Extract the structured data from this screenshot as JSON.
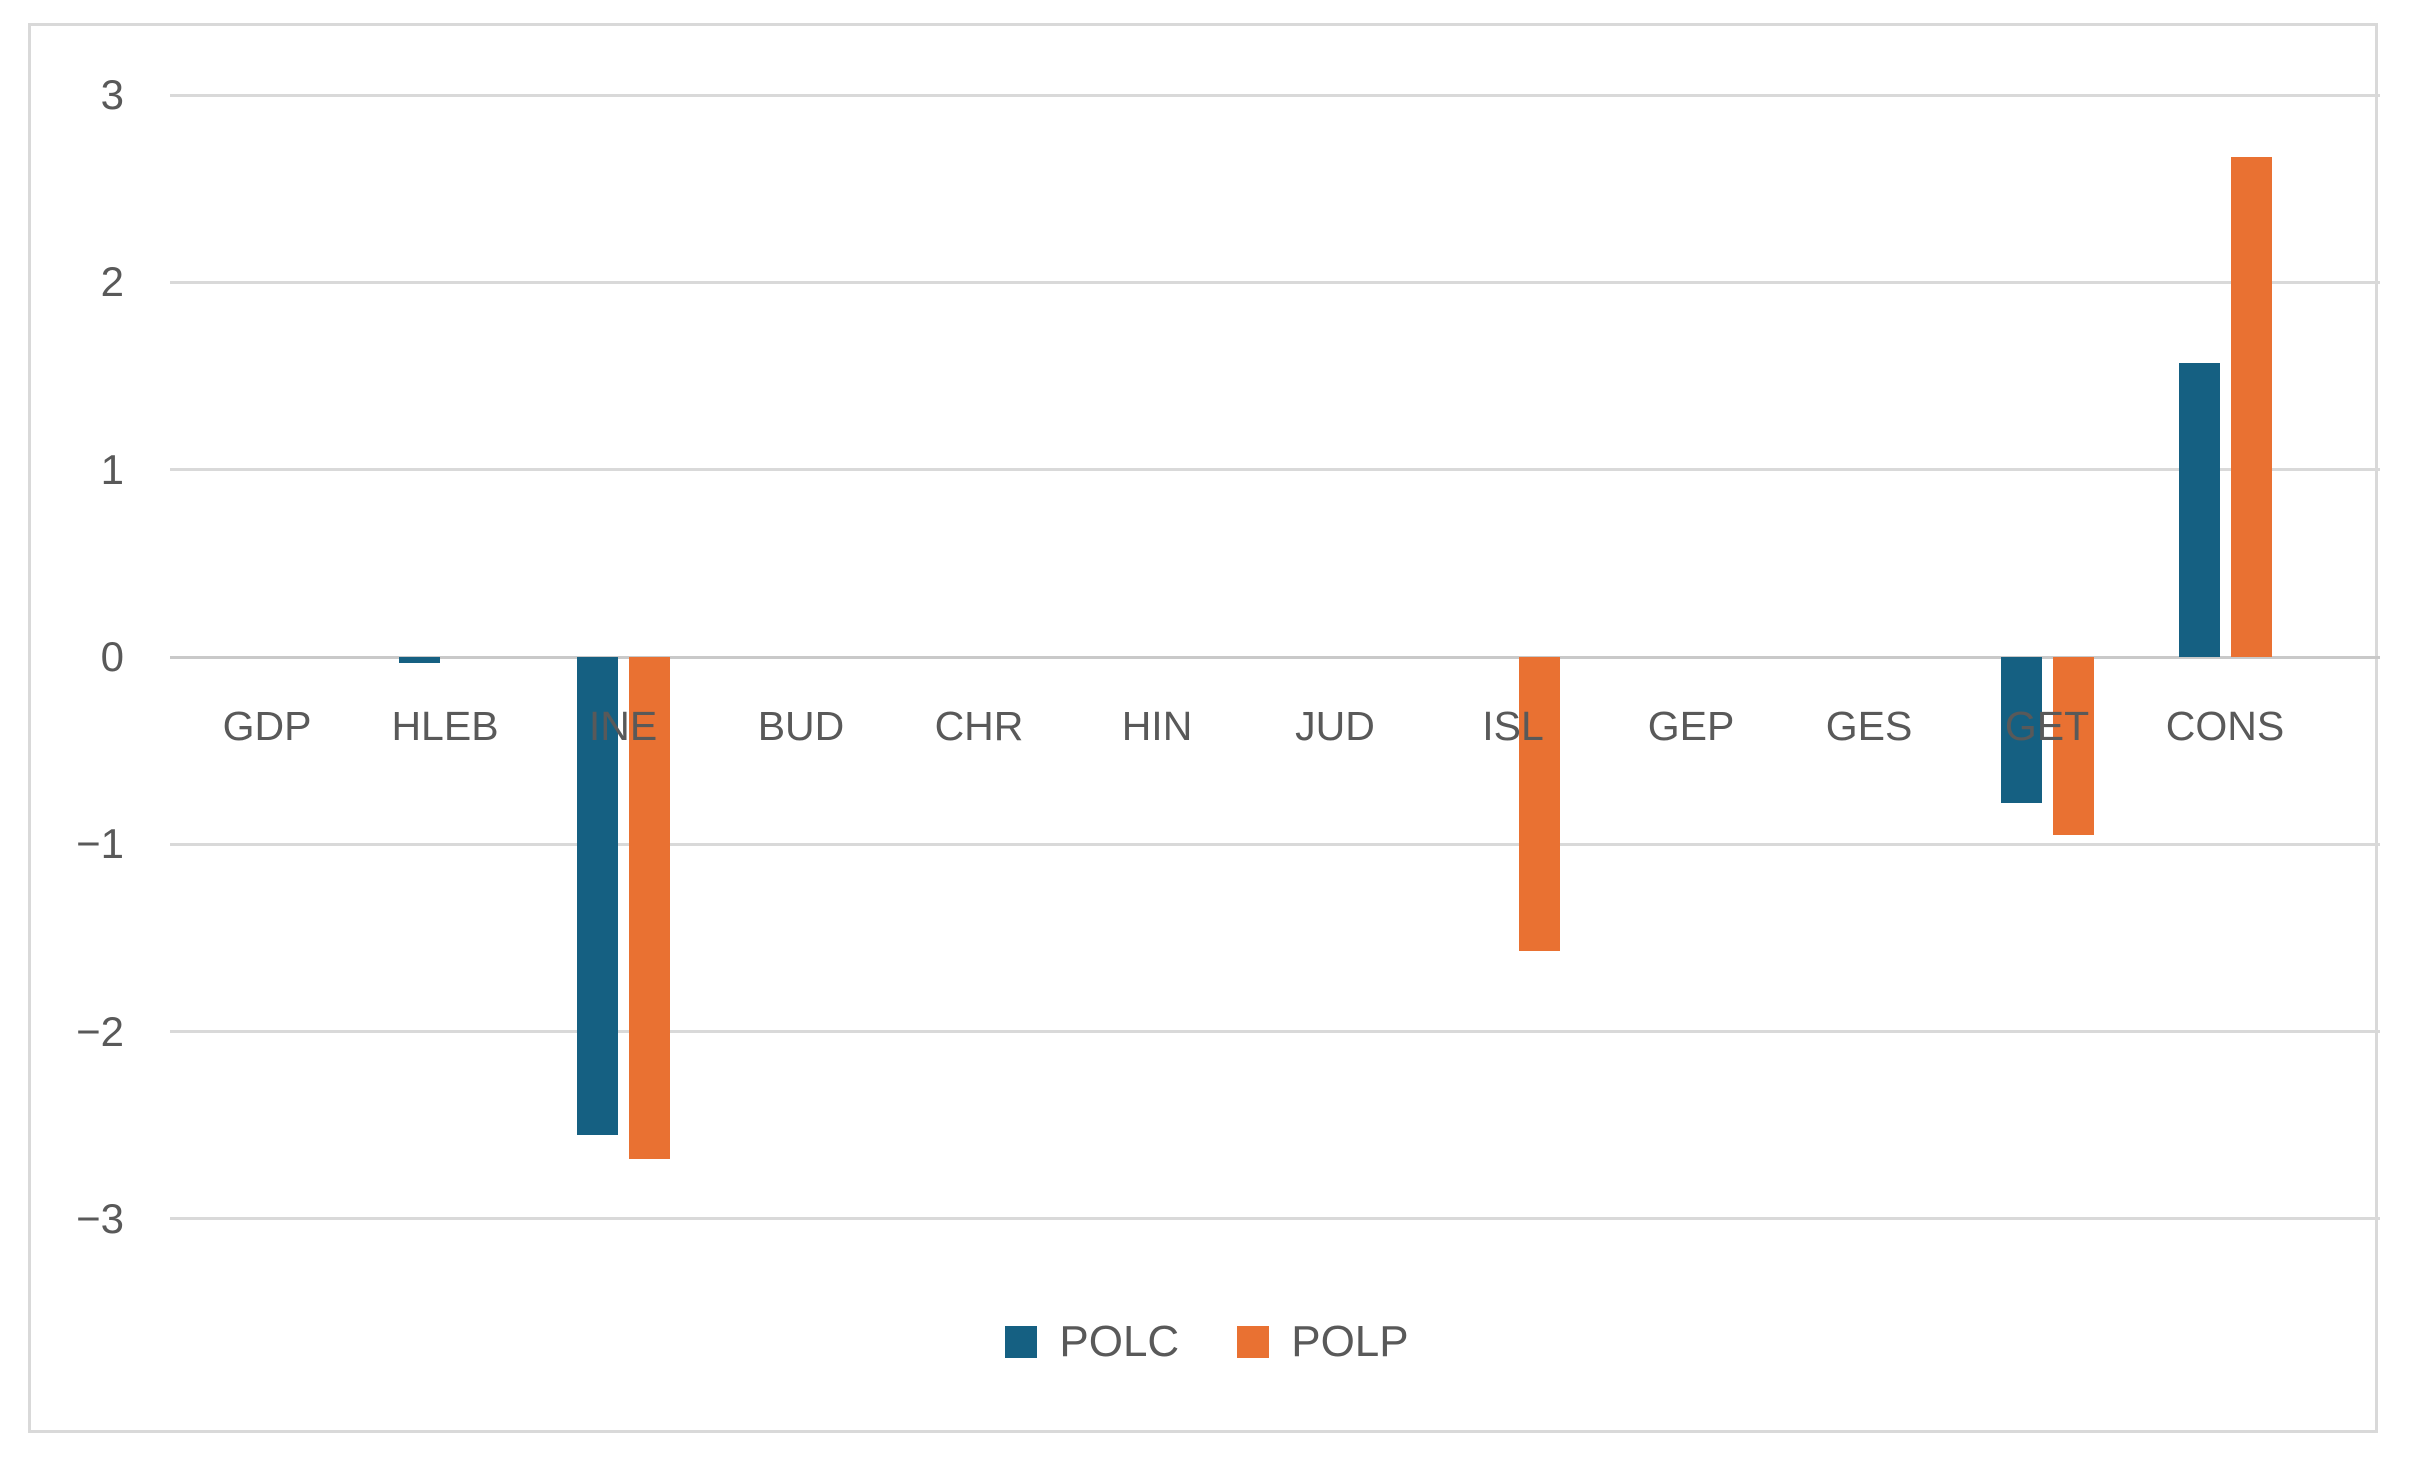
{
  "chart_data": {
    "type": "bar",
    "title": "",
    "xlabel": "",
    "ylabel": "",
    "categories": [
      "GDP",
      "HLEB",
      "INE",
      "BUD",
      "CHR",
      "HIN",
      "JUD",
      "ISL",
      "GEP",
      "GES",
      "GET",
      "CONS"
    ],
    "series": [
      {
        "name": "POLC",
        "color": "#156082",
        "values": [
          0,
          -0.03,
          -2.55,
          0,
          0,
          0,
          0,
          0,
          0,
          0,
          -0.78,
          1.57
        ]
      },
      {
        "name": "POLP",
        "color": "#E97132",
        "values": [
          0,
          0,
          -2.68,
          0,
          0,
          0,
          0,
          -1.57,
          0,
          0,
          -0.95,
          2.67
        ]
      }
    ],
    "ylim": [
      -3,
      3
    ],
    "ytick_interval": 1,
    "yticks": [
      "3",
      "2",
      "1",
      "0",
      "−1",
      "−2",
      "−3"
    ],
    "ytick_values": [
      3,
      2,
      1,
      0,
      -1,
      -2,
      -3
    ],
    "grid": true,
    "legend_position": "bottom-center",
    "colors": {
      "background": "#FFFFFF",
      "border": "#D9D9D9",
      "gridline": "#D9D9D9",
      "axis_text": "#595959"
    }
  }
}
